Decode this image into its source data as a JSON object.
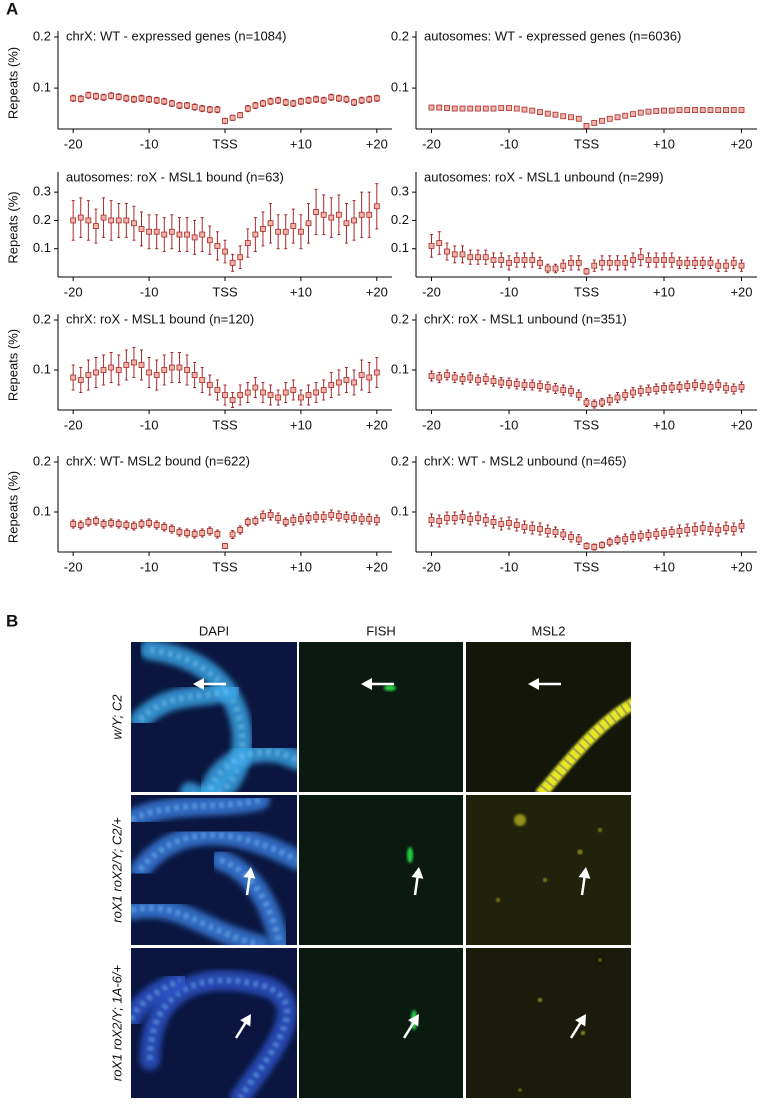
{
  "panel_a_label": "A",
  "chart_data": [
    {
      "type": "errorbar",
      "title": "chrX: WT - expressed genes (n=1084)",
      "ylabel": "Repeats (%)",
      "color": "#a52a2a",
      "x": [
        -20,
        -19,
        -18,
        -17,
        -16,
        -15,
        -14,
        -13,
        -12,
        -11,
        -10,
        -9,
        -8,
        -7,
        -6,
        -5,
        -4,
        -3,
        -2,
        -1,
        0,
        1,
        2,
        3,
        4,
        5,
        6,
        7,
        8,
        9,
        10,
        11,
        12,
        13,
        14,
        15,
        16,
        17,
        18,
        19,
        20
      ],
      "values": [
        0.08,
        0.079,
        0.086,
        0.084,
        0.082,
        0.085,
        0.083,
        0.08,
        0.078,
        0.08,
        0.078,
        0.076,
        0.074,
        0.07,
        0.066,
        0.066,
        0.063,
        0.06,
        0.058,
        0.058,
        0.036,
        0.042,
        0.047,
        0.06,
        0.066,
        0.07,
        0.074,
        0.076,
        0.072,
        0.07,
        0.074,
        0.076,
        0.078,
        0.076,
        0.082,
        0.08,
        0.078,
        0.072,
        0.076,
        0.078,
        0.08
      ],
      "errors": [
        0.006,
        0.006,
        0.006,
        0.006,
        0.006,
        0.006,
        0.006,
        0.006,
        0.006,
        0.006,
        0.006,
        0.006,
        0.006,
        0.006,
        0.006,
        0.006,
        0.006,
        0.006,
        0.006,
        0.006,
        0.005,
        0.005,
        0.005,
        0.006,
        0.006,
        0.006,
        0.006,
        0.006,
        0.006,
        0.006,
        0.006,
        0.006,
        0.006,
        0.006,
        0.006,
        0.006,
        0.006,
        0.006,
        0.006,
        0.006,
        0.006
      ],
      "xlim": [
        -22,
        22
      ],
      "ylim": [
        0.02,
        0.2
      ],
      "yticks": [
        0.1,
        0.2
      ],
      "xticks": [
        -20,
        -10,
        {
          "value": 0,
          "label": "TSS"
        },
        {
          "value": 10,
          "label": "+10"
        },
        {
          "value": 20,
          "label": "+20"
        }
      ]
    },
    {
      "type": "errorbar",
      "title": "autosomes: WT - expressed genes (n=6036)",
      "color": "#a52a2a",
      "x": [
        -20,
        -19,
        -18,
        -17,
        -16,
        -15,
        -14,
        -13,
        -12,
        -11,
        -10,
        -9,
        -8,
        -7,
        -6,
        -5,
        -4,
        -3,
        -2,
        -1,
        0,
        1,
        2,
        3,
        4,
        5,
        6,
        7,
        8,
        9,
        10,
        11,
        12,
        13,
        14,
        15,
        16,
        17,
        18,
        19,
        20
      ],
      "values": [
        0.062,
        0.062,
        0.061,
        0.06,
        0.06,
        0.06,
        0.06,
        0.06,
        0.06,
        0.061,
        0.061,
        0.06,
        0.058,
        0.056,
        0.053,
        0.05,
        0.048,
        0.045,
        0.043,
        0.04,
        0.026,
        0.032,
        0.036,
        0.04,
        0.043,
        0.046,
        0.049,
        0.052,
        0.054,
        0.055,
        0.056,
        0.056,
        0.057,
        0.057,
        0.057,
        0.057,
        0.057,
        0.057,
        0.057,
        0.057,
        0.057
      ],
      "errors": [
        0.002,
        0.002,
        0.002,
        0.002,
        0.002,
        0.002,
        0.002,
        0.002,
        0.002,
        0.002,
        0.002,
        0.002,
        0.002,
        0.002,
        0.002,
        0.002,
        0.002,
        0.002,
        0.002,
        0.002,
        0.002,
        0.002,
        0.002,
        0.002,
        0.002,
        0.002,
        0.002,
        0.002,
        0.002,
        0.002,
        0.002,
        0.002,
        0.002,
        0.002,
        0.002,
        0.002,
        0.002,
        0.002,
        0.002,
        0.002,
        0.002
      ],
      "xlim": [
        -22,
        22
      ],
      "ylim": [
        0.02,
        0.2
      ],
      "yticks": [
        0.1,
        0.2
      ],
      "xticks": [
        -20,
        -10,
        {
          "value": 0,
          "label": "TSS"
        },
        {
          "value": 10,
          "label": "+10"
        },
        {
          "value": 20,
          "label": "+20"
        }
      ]
    },
    {
      "type": "errorbar",
      "title": "autosomes: roX - MSL1 bound (n=63)",
      "ylabel": "Repeats (%)",
      "color": "#a52a2a",
      "x": [
        -20,
        -19,
        -18,
        -17,
        -16,
        -15,
        -14,
        -13,
        -12,
        -11,
        -10,
        -9,
        -8,
        -7,
        -6,
        -5,
        -4,
        -3,
        -2,
        -1,
        0,
        1,
        2,
        3,
        4,
        5,
        6,
        7,
        8,
        9,
        10,
        11,
        12,
        13,
        14,
        15,
        16,
        17,
        18,
        19,
        20
      ],
      "values": [
        0.2,
        0.21,
        0.2,
        0.18,
        0.21,
        0.2,
        0.2,
        0.2,
        0.19,
        0.17,
        0.16,
        0.16,
        0.15,
        0.16,
        0.15,
        0.15,
        0.14,
        0.15,
        0.13,
        0.11,
        0.09,
        0.05,
        0.07,
        0.12,
        0.15,
        0.17,
        0.19,
        0.16,
        0.16,
        0.18,
        0.16,
        0.19,
        0.23,
        0.22,
        0.21,
        0.22,
        0.19,
        0.2,
        0.22,
        0.22,
        0.25
      ],
      "errors": [
        0.07,
        0.07,
        0.07,
        0.06,
        0.07,
        0.07,
        0.06,
        0.06,
        0.06,
        0.06,
        0.06,
        0.06,
        0.06,
        0.06,
        0.06,
        0.06,
        0.06,
        0.06,
        0.05,
        0.05,
        0.04,
        0.03,
        0.04,
        0.05,
        0.06,
        0.06,
        0.07,
        0.06,
        0.06,
        0.06,
        0.06,
        0.07,
        0.08,
        0.07,
        0.07,
        0.07,
        0.07,
        0.07,
        0.08,
        0.08,
        0.08
      ],
      "xlim": [
        -22,
        22
      ],
      "ylim": [
        0,
        0.35
      ],
      "yticks": [
        0.1,
        0.2,
        0.3
      ],
      "xticks": [
        -20,
        -10,
        {
          "value": 0,
          "label": "TSS"
        },
        {
          "value": 10,
          "label": "+10"
        },
        {
          "value": 20,
          "label": "+20"
        }
      ]
    },
    {
      "type": "errorbar",
      "title": "autosomes: roX - MSL1 unbound (n=299)",
      "color": "#a52a2a",
      "x": [
        -20,
        -19,
        -18,
        -17,
        -16,
        -15,
        -14,
        -13,
        -12,
        -11,
        -10,
        -9,
        -8,
        -7,
        -6,
        -5,
        -4,
        -3,
        -2,
        -1,
        0,
        1,
        2,
        3,
        4,
        5,
        6,
        7,
        8,
        9,
        10,
        11,
        12,
        13,
        14,
        15,
        16,
        17,
        18,
        19,
        20
      ],
      "values": [
        0.11,
        0.12,
        0.09,
        0.08,
        0.08,
        0.07,
        0.07,
        0.07,
        0.06,
        0.06,
        0.05,
        0.06,
        0.06,
        0.06,
        0.05,
        0.03,
        0.03,
        0.04,
        0.05,
        0.05,
        0.02,
        0.04,
        0.05,
        0.05,
        0.05,
        0.05,
        0.06,
        0.07,
        0.06,
        0.06,
        0.06,
        0.06,
        0.05,
        0.05,
        0.05,
        0.05,
        0.05,
        0.04,
        0.04,
        0.05,
        0.04
      ],
      "errors": [
        0.04,
        0.04,
        0.03,
        0.03,
        0.03,
        0.025,
        0.025,
        0.025,
        0.025,
        0.025,
        0.025,
        0.025,
        0.025,
        0.025,
        0.02,
        0.015,
        0.015,
        0.02,
        0.025,
        0.025,
        0.01,
        0.02,
        0.025,
        0.025,
        0.025,
        0.025,
        0.025,
        0.03,
        0.025,
        0.025,
        0.025,
        0.025,
        0.02,
        0.02,
        0.02,
        0.02,
        0.02,
        0.02,
        0.02,
        0.02,
        0.02
      ],
      "xlim": [
        -22,
        22
      ],
      "ylim": [
        0,
        0.35
      ],
      "yticks": [
        0.1,
        0.2,
        0.3
      ],
      "xticks": [
        -20,
        -10,
        {
          "value": 0,
          "label": "TSS"
        },
        {
          "value": 10,
          "label": "+10"
        },
        {
          "value": 20,
          "label": "+20"
        }
      ]
    },
    {
      "type": "errorbar",
      "title": "chrX: roX - MSL1 bound (n=120)",
      "ylabel": "Repeats (%)",
      "color": "#a52a2a",
      "x": [
        -20,
        -19,
        -18,
        -17,
        -16,
        -15,
        -14,
        -13,
        -12,
        -11,
        -10,
        -9,
        -8,
        -7,
        -6,
        -5,
        -4,
        -3,
        -2,
        -1,
        0,
        1,
        2,
        3,
        4,
        5,
        6,
        7,
        8,
        9,
        10,
        11,
        12,
        13,
        14,
        15,
        16,
        17,
        18,
        19,
        20
      ],
      "values": [
        0.085,
        0.08,
        0.09,
        0.095,
        0.1,
        0.105,
        0.1,
        0.11,
        0.115,
        0.11,
        0.095,
        0.09,
        0.1,
        0.105,
        0.105,
        0.1,
        0.09,
        0.08,
        0.07,
        0.06,
        0.05,
        0.04,
        0.05,
        0.055,
        0.065,
        0.055,
        0.05,
        0.045,
        0.055,
        0.06,
        0.045,
        0.05,
        0.055,
        0.06,
        0.07,
        0.075,
        0.08,
        0.075,
        0.09,
        0.085,
        0.095
      ],
      "errors": [
        0.025,
        0.025,
        0.03,
        0.03,
        0.03,
        0.03,
        0.03,
        0.03,
        0.03,
        0.03,
        0.03,
        0.03,
        0.03,
        0.03,
        0.03,
        0.03,
        0.025,
        0.025,
        0.02,
        0.02,
        0.02,
        0.015,
        0.02,
        0.02,
        0.02,
        0.02,
        0.02,
        0.015,
        0.02,
        0.02,
        0.015,
        0.02,
        0.02,
        0.02,
        0.025,
        0.025,
        0.025,
        0.025,
        0.03,
        0.03,
        0.03
      ],
      "xlim": [
        -22,
        22
      ],
      "ylim": [
        0.02,
        0.2
      ],
      "yticks": [
        0.1,
        0.2
      ],
      "xticks": [
        -20,
        -10,
        {
          "value": 0,
          "label": "TSS"
        },
        {
          "value": 10,
          "label": "+10"
        },
        {
          "value": 20,
          "label": "+20"
        }
      ]
    },
    {
      "type": "errorbar",
      "title": "chrX: roX - MSL1 unbound (n=351)",
      "color": "#a52a2a",
      "x": [
        -20,
        -19,
        -18,
        -17,
        -16,
        -15,
        -14,
        -13,
        -12,
        -11,
        -10,
        -9,
        -8,
        -7,
        -6,
        -5,
        -4,
        -3,
        -2,
        -1,
        0,
        1,
        2,
        3,
        4,
        5,
        6,
        7,
        8,
        9,
        10,
        11,
        12,
        13,
        14,
        15,
        16,
        17,
        18,
        19,
        20
      ],
      "values": [
        0.088,
        0.085,
        0.09,
        0.085,
        0.082,
        0.085,
        0.08,
        0.082,
        0.078,
        0.075,
        0.074,
        0.072,
        0.07,
        0.07,
        0.068,
        0.066,
        0.063,
        0.06,
        0.058,
        0.05,
        0.035,
        0.032,
        0.035,
        0.04,
        0.045,
        0.05,
        0.055,
        0.058,
        0.06,
        0.062,
        0.064,
        0.065,
        0.066,
        0.068,
        0.07,
        0.068,
        0.066,
        0.07,
        0.064,
        0.062,
        0.066
      ],
      "errors": [
        0.01,
        0.01,
        0.01,
        0.01,
        0.01,
        0.01,
        0.01,
        0.01,
        0.01,
        0.01,
        0.01,
        0.01,
        0.01,
        0.01,
        0.01,
        0.01,
        0.01,
        0.01,
        0.01,
        0.01,
        0.008,
        0.008,
        0.008,
        0.01,
        0.01,
        0.01,
        0.01,
        0.01,
        0.01,
        0.01,
        0.01,
        0.01,
        0.01,
        0.01,
        0.01,
        0.01,
        0.01,
        0.01,
        0.01,
        0.01,
        0.01
      ],
      "xlim": [
        -22,
        22
      ],
      "ylim": [
        0.02,
        0.2
      ],
      "yticks": [
        0.1,
        0.2
      ],
      "xticks": [
        -20,
        -10,
        {
          "value": 0,
          "label": "TSS"
        },
        {
          "value": 10,
          "label": "+10"
        },
        {
          "value": 20,
          "label": "+20"
        }
      ]
    },
    {
      "type": "errorbar",
      "title": "chrX: WT- MSL2 bound (n=622)",
      "ylabel": "Repeats (%)",
      "color": "#a52a2a",
      "x": [
        -20,
        -19,
        -18,
        -17,
        -16,
        -15,
        -14,
        -13,
        -12,
        -11,
        -10,
        -9,
        -8,
        -7,
        -6,
        -5,
        -4,
        -3,
        -2,
        -1,
        0,
        1,
        2,
        3,
        4,
        5,
        6,
        7,
        8,
        9,
        10,
        11,
        12,
        13,
        14,
        15,
        16,
        17,
        18,
        19,
        20
      ],
      "values": [
        0.076,
        0.074,
        0.08,
        0.082,
        0.076,
        0.078,
        0.076,
        0.074,
        0.072,
        0.076,
        0.078,
        0.074,
        0.07,
        0.066,
        0.06,
        0.058,
        0.056,
        0.058,
        0.062,
        0.056,
        0.032,
        0.055,
        0.064,
        0.08,
        0.082,
        0.092,
        0.094,
        0.088,
        0.08,
        0.084,
        0.086,
        0.088,
        0.09,
        0.09,
        0.094,
        0.092,
        0.09,
        0.088,
        0.086,
        0.086,
        0.084
      ],
      "errors": [
        0.008,
        0.008,
        0.008,
        0.008,
        0.008,
        0.008,
        0.008,
        0.008,
        0.008,
        0.008,
        0.008,
        0.008,
        0.008,
        0.008,
        0.008,
        0.008,
        0.008,
        0.008,
        0.008,
        0.008,
        0.005,
        0.008,
        0.008,
        0.008,
        0.008,
        0.01,
        0.01,
        0.01,
        0.008,
        0.01,
        0.01,
        0.01,
        0.01,
        0.01,
        0.01,
        0.01,
        0.01,
        0.01,
        0.01,
        0.01,
        0.01
      ],
      "xlim": [
        -22,
        22
      ],
      "ylim": [
        0.02,
        0.2
      ],
      "yticks": [
        0.1,
        0.2
      ],
      "xticks": [
        -20,
        -10,
        {
          "value": 0,
          "label": "TSS"
        },
        {
          "value": 10,
          "label": "+10"
        },
        {
          "value": 20,
          "label": "+20"
        }
      ]
    },
    {
      "type": "errorbar",
      "title": "chrX: WT - MSL2 unbound (n=465)",
      "color": "#a52a2a",
      "x": [
        -20,
        -19,
        -18,
        -17,
        -16,
        -15,
        -14,
        -13,
        -12,
        -11,
        -10,
        -9,
        -8,
        -7,
        -6,
        -5,
        -4,
        -3,
        -2,
        -1,
        0,
        1,
        2,
        3,
        4,
        5,
        6,
        7,
        8,
        9,
        10,
        11,
        12,
        13,
        14,
        15,
        16,
        17,
        18,
        19,
        20
      ],
      "values": [
        0.084,
        0.082,
        0.088,
        0.088,
        0.09,
        0.086,
        0.088,
        0.084,
        0.08,
        0.076,
        0.078,
        0.074,
        0.07,
        0.068,
        0.066,
        0.062,
        0.06,
        0.055,
        0.05,
        0.045,
        0.032,
        0.03,
        0.034,
        0.04,
        0.044,
        0.046,
        0.05,
        0.052,
        0.054,
        0.056,
        0.058,
        0.06,
        0.062,
        0.064,
        0.066,
        0.068,
        0.066,
        0.064,
        0.068,
        0.066,
        0.072
      ],
      "errors": [
        0.012,
        0.012,
        0.012,
        0.012,
        0.012,
        0.012,
        0.012,
        0.012,
        0.012,
        0.012,
        0.012,
        0.012,
        0.012,
        0.012,
        0.012,
        0.012,
        0.01,
        0.01,
        0.01,
        0.01,
        0.006,
        0.006,
        0.006,
        0.008,
        0.008,
        0.01,
        0.01,
        0.01,
        0.01,
        0.01,
        0.01,
        0.01,
        0.012,
        0.012,
        0.012,
        0.012,
        0.012,
        0.012,
        0.012,
        0.012,
        0.012
      ],
      "xlim": [
        -22,
        22
      ],
      "ylim": [
        0.02,
        0.2
      ],
      "yticks": [
        0.1,
        0.2
      ],
      "xticks": [
        -20,
        -10,
        {
          "value": 0,
          "label": "TSS"
        },
        {
          "value": 10,
          "label": "+10"
        },
        {
          "value": 20,
          "label": "+20"
        }
      ]
    }
  ],
  "panel_b": {
    "label": "B",
    "columns": [
      "DAPI",
      "FISH",
      "MSL2"
    ],
    "rows": [
      "w/Y; C2",
      "roX1 roX2/Y; C2/+",
      "roX1 roX2/Y; 1A-6/+"
    ]
  }
}
